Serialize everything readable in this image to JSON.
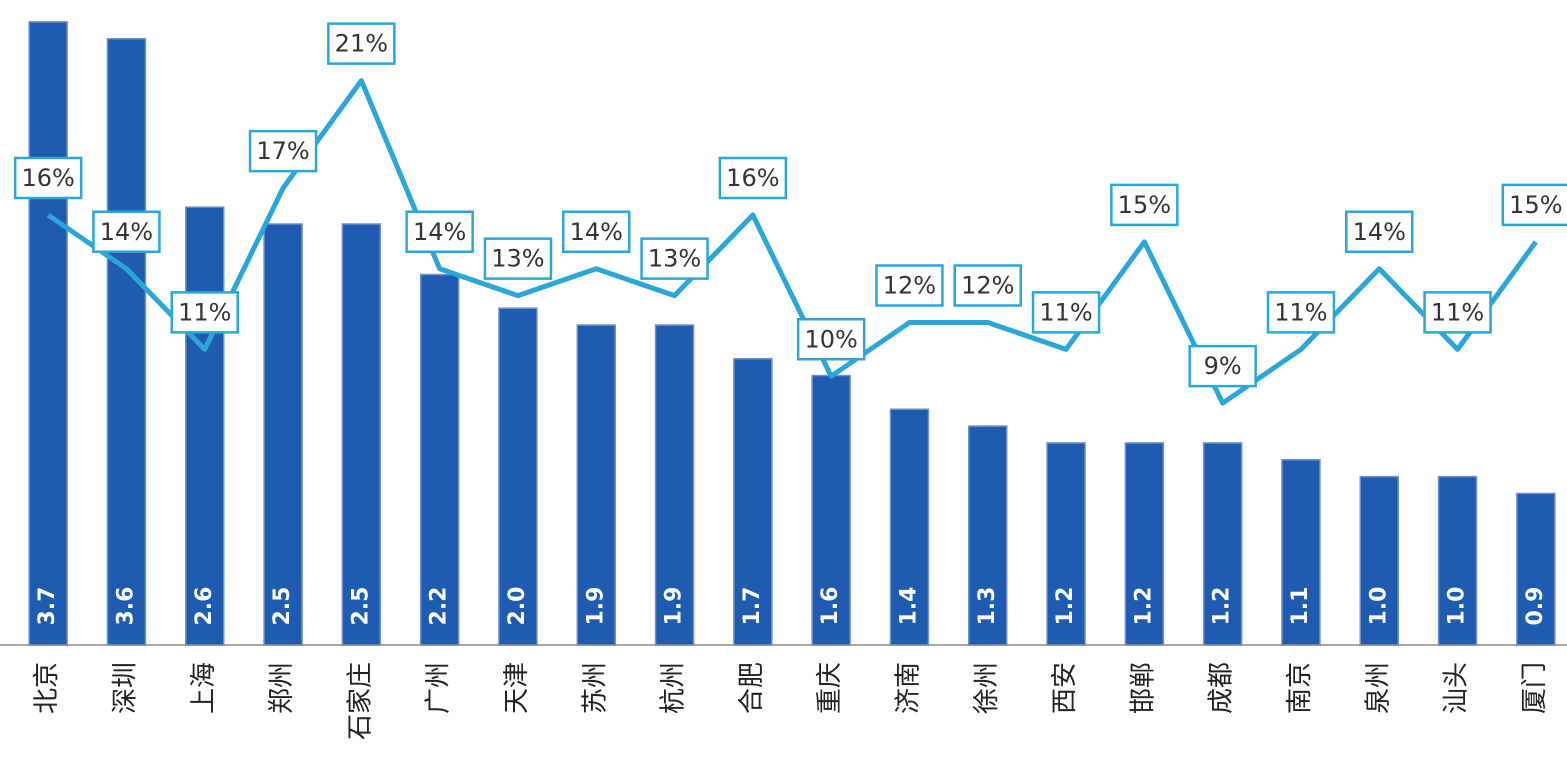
{
  "chart_data": {
    "type": "bar",
    "categories": [
      "北京",
      "深圳",
      "上海",
      "郑州",
      "石家庄",
      "广州",
      "天津",
      "苏州",
      "杭州",
      "合肥",
      "重庆",
      "济南",
      "徐州",
      "西安",
      "邯郸",
      "成都",
      "南京",
      "泉州",
      "汕头",
      "厦门"
    ],
    "ylim": [
      0,
      3.83
    ],
    "y2lim": [
      0,
      24
    ],
    "series": [
      {
        "type": "bar",
        "color": "#1f5bb0",
        "values": [
          3.7,
          3.6,
          2.6,
          2.5,
          2.5,
          2.2,
          2.0,
          1.9,
          1.9,
          1.7,
          1.6,
          1.4,
          1.3,
          1.2,
          1.2,
          1.2,
          1.1,
          1.0,
          1.0,
          0.9
        ],
        "value_labels": [
          "3.7",
          "3.6",
          "2.6",
          "2.5",
          "2.5",
          "2.2",
          "2.0",
          "1.9",
          "1.9",
          "1.7",
          "1.6",
          "1.4",
          "1.3",
          "1.2",
          "1.2",
          "1.2",
          "1.1",
          "1.0",
          "1.0",
          "0.9"
        ]
      },
      {
        "type": "line",
        "axis": "y2",
        "color": "#2aa6d8",
        "values": [
          16,
          14,
          11,
          17,
          21,
          14,
          13,
          14,
          13,
          16,
          10,
          12,
          12,
          11,
          15,
          9,
          11,
          14,
          11,
          15
        ],
        "value_labels": [
          "16%",
          "14%",
          "11%",
          "17%",
          "21%",
          "14%",
          "13%",
          "14%",
          "13%",
          "16%",
          "10%",
          "12%",
          "12%",
          "11%",
          "15%",
          "9%",
          "11%",
          "14%",
          "11%",
          "15%"
        ]
      }
    ]
  }
}
